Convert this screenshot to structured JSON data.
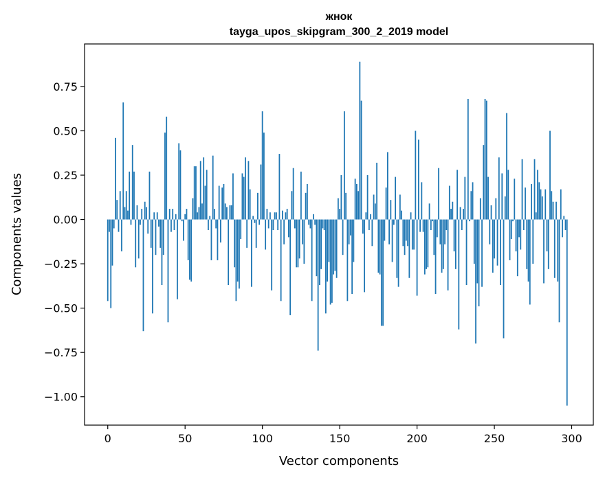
{
  "chart_data": {
    "type": "bar",
    "title": "жнок",
    "subtitle": "tayga_upos_skipgram_300_2_2019 model",
    "xlabel": "Vector components",
    "ylabel": "Components values",
    "xlim": [
      -15,
      314
    ],
    "ylim": [
      -1.16,
      0.99
    ],
    "xticks": [
      0,
      50,
      100,
      150,
      200,
      250,
      300
    ],
    "xtick_labels": [
      "0",
      "50",
      "100",
      "150",
      "200",
      "250",
      "300"
    ],
    "yticks": [
      -1.0,
      -0.75,
      -0.5,
      -0.25,
      0.0,
      0.25,
      0.5,
      0.75
    ],
    "ytick_labels": [
      "−1.00",
      "−0.75",
      "−0.50",
      "−0.25",
      "0.00",
      "0.25",
      "0.50",
      "0.75"
    ],
    "grid": false,
    "bar_color": "#1f77b4",
    "values": [
      -0.46,
      -0.07,
      -0.5,
      -0.26,
      -0.05,
      0.46,
      0.11,
      -0.07,
      0.16,
      -0.18,
      0.66,
      0.07,
      0.16,
      0.05,
      0.27,
      -0.03,
      0.42,
      0.27,
      -0.27,
      0.08,
      -0.22,
      -0.03,
      0.06,
      -0.63,
      0.1,
      0.07,
      -0.08,
      0.27,
      -0.16,
      -0.53,
      0.04,
      -0.2,
      0.04,
      -0.04,
      -0.16,
      -0.37,
      -0.2,
      0.49,
      0.58,
      -0.58,
      0.06,
      -0.07,
      0.06,
      -0.06,
      0.03,
      -0.45,
      0.43,
      0.39,
      -0.01,
      -0.12,
      0.03,
      0.06,
      -0.23,
      -0.34,
      -0.35,
      0.12,
      0.3,
      0.3,
      0.04,
      0.07,
      0.33,
      0.09,
      0.35,
      0.19,
      0.28,
      -0.06,
      0.02,
      -0.23,
      0.36,
      0.06,
      -0.05,
      -0.23,
      0.19,
      -0.13,
      0.18,
      0.2,
      0.09,
      0.07,
      -0.37,
      0.08,
      0.08,
      0.26,
      -0.27,
      -0.46,
      -0.35,
      -0.39,
      -0.11,
      0.26,
      0.24,
      0.35,
      -0.16,
      0.33,
      0.17,
      -0.38,
      0.02,
      -0.02,
      -0.16,
      0.15,
      -0.03,
      0.31,
      0.61,
      0.49,
      -0.17,
      0.06,
      -0.05,
      0.04,
      -0.4,
      -0.06,
      0.04,
      0.04,
      -0.06,
      0.37,
      -0.46,
      0.05,
      -0.14,
      0.04,
      0.06,
      -0.1,
      -0.54,
      0.16,
      0.29,
      -0.05,
      -0.27,
      -0.27,
      -0.22,
      0.27,
      -0.14,
      -0.25,
      0.15,
      0.2,
      -0.03,
      -0.05,
      -0.46,
      0.03,
      -0.03,
      -0.32,
      -0.74,
      -0.37,
      -0.28,
      -0.05,
      -0.06,
      -0.53,
      -0.35,
      -0.24,
      -0.48,
      -0.47,
      -0.31,
      -0.29,
      -0.33,
      0.12,
      0.06,
      0.25,
      -0.2,
      0.61,
      0.15,
      -0.46,
      -0.14,
      -0.09,
      -0.42,
      -0.24,
      0.23,
      0.2,
      0.16,
      0.89,
      0.67,
      -0.08,
      -0.41,
      0.04,
      0.25,
      -0.06,
      0.03,
      -0.15,
      0.14,
      0.09,
      0.32,
      -0.3,
      -0.31,
      -0.6,
      -0.6,
      -0.12,
      0.18,
      0.38,
      -0.14,
      0.11,
      -0.24,
      -0.03,
      0.24,
      -0.33,
      -0.38,
      0.14,
      0.05,
      -0.15,
      -0.2,
      -0.12,
      -0.15,
      -0.33,
      0.04,
      -0.17,
      -0.17,
      0.5,
      -0.43,
      0.45,
      -0.07,
      0.21,
      -0.07,
      -0.31,
      -0.28,
      -0.27,
      0.09,
      -0.06,
      -0.01,
      -0.2,
      -0.42,
      -0.1,
      0.29,
      -0.14,
      -0.3,
      -0.28,
      -0.14,
      -0.06,
      -0.4,
      0.19,
      0.06,
      0.1,
      -0.18,
      -0.28,
      0.28,
      -0.62,
      0.07,
      -0.06,
      0.06,
      0.24,
      -0.37,
      0.68,
      -0.01,
      0.16,
      0.21,
      -0.25,
      -0.7,
      -0.36,
      -0.49,
      0.12,
      -0.38,
      0.42,
      0.68,
      0.67,
      0.24,
      -0.14,
      0.08,
      -0.3,
      -0.22,
      0.12,
      -0.26,
      0.35,
      -0.37,
      0.26,
      -0.67,
      0.13,
      0.6,
      0.28,
      -0.23,
      -0.11,
      -0.01,
      0.23,
      -0.18,
      -0.32,
      -0.1,
      -0.17,
      0.34,
      -0.06,
      0.18,
      -0.28,
      -0.35,
      -0.48,
      0.2,
      -0.25,
      0.34,
      0.04,
      0.28,
      0.21,
      0.17,
      0.13,
      -0.36,
      0.17,
      -0.18,
      -0.28,
      0.5,
      0.16,
      0.1,
      -0.33,
      0.1,
      -0.35,
      -0.58,
      0.17,
      -0.1,
      0.02,
      -0.06,
      -1.05
    ]
  }
}
